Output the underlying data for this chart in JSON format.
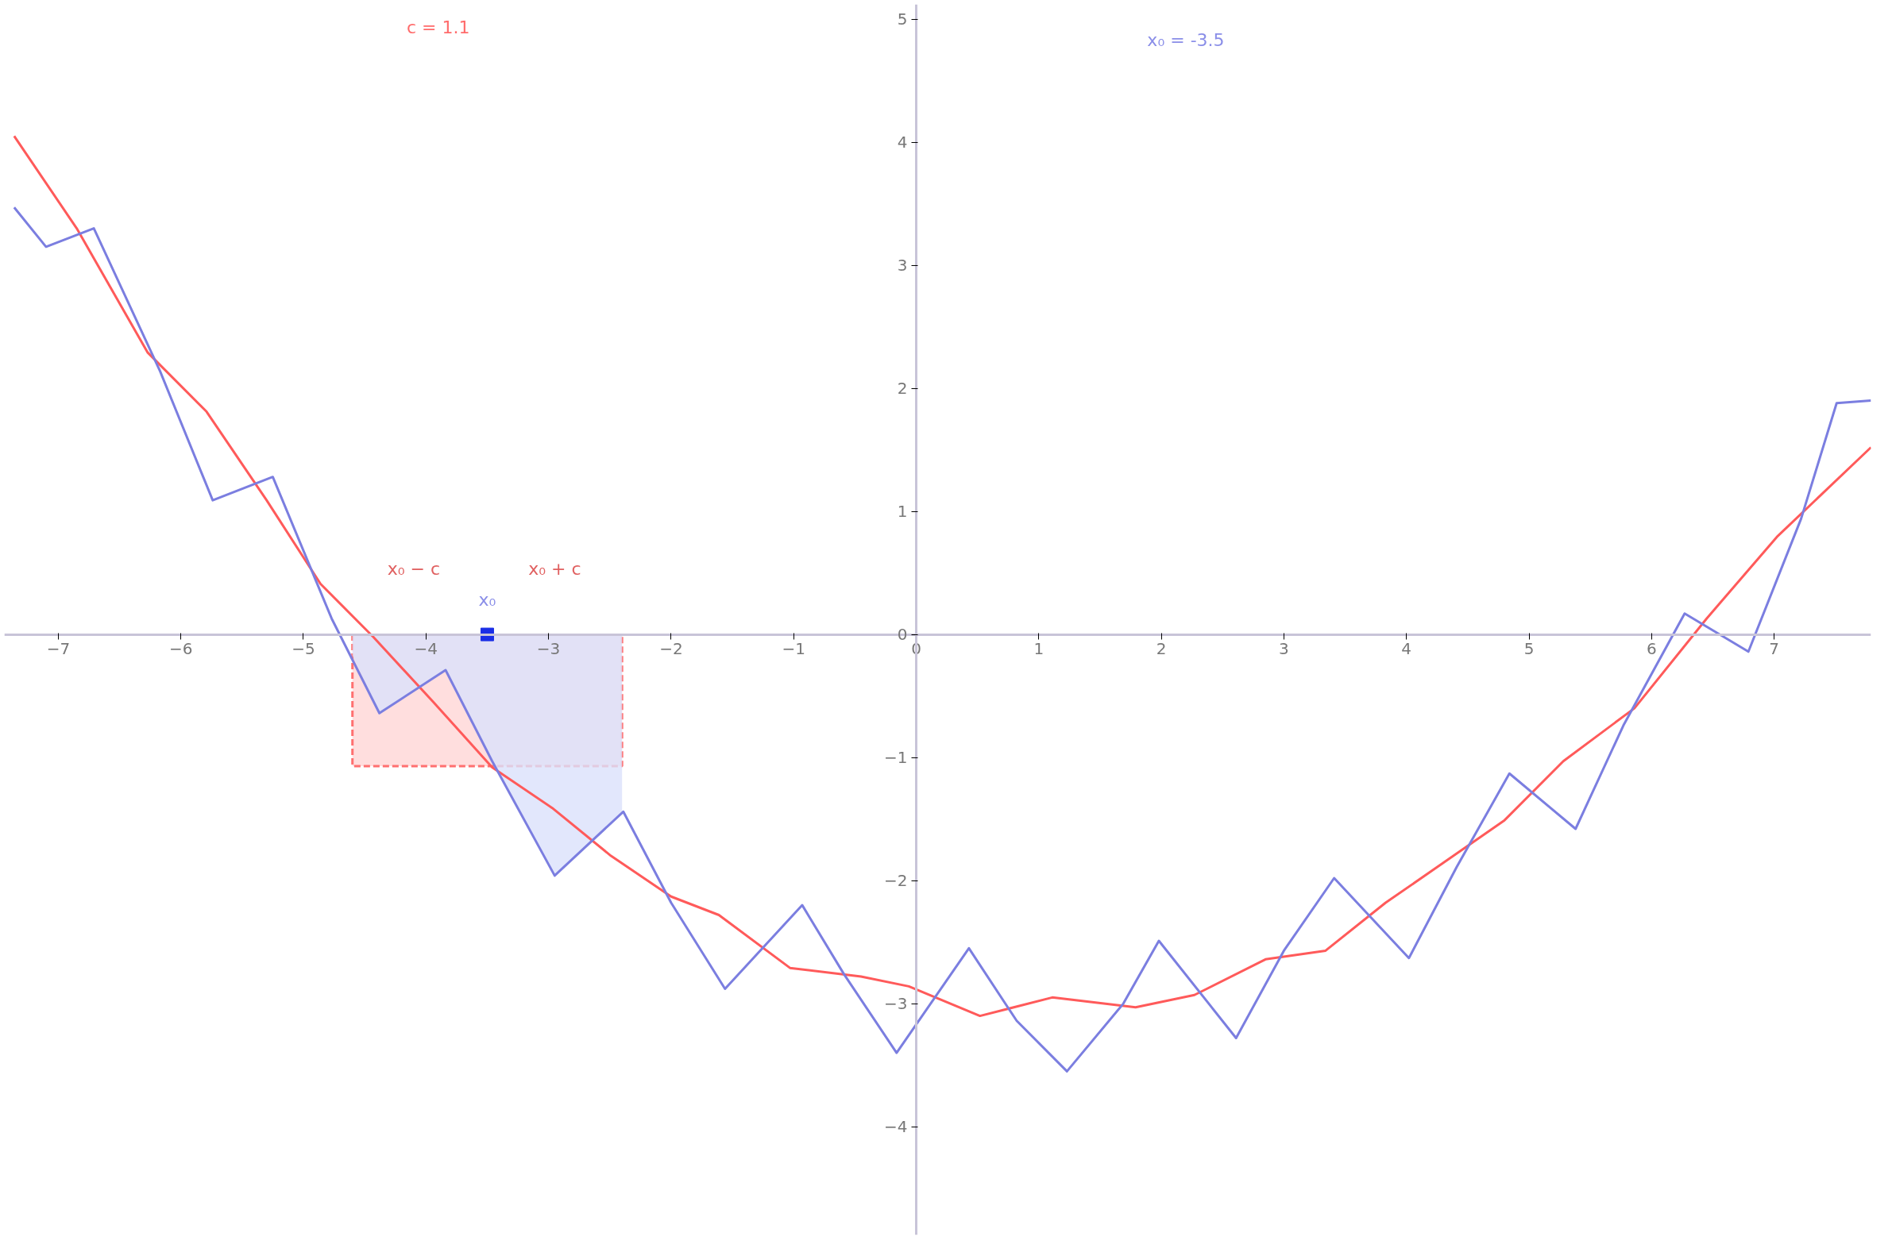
{
  "chart_data": {
    "type": "line",
    "xlim": [
      -7.44,
      7.79
    ],
    "ylim": [
      -4.88,
      5.12
    ],
    "xticks": [
      -7,
      -6,
      -5,
      -4,
      -3,
      -2,
      -1,
      0,
      1,
      2,
      3,
      4,
      5,
      6,
      7
    ],
    "yticks": [
      -4,
      -3,
      -2,
      -1,
      0,
      1,
      2,
      3,
      4,
      5
    ],
    "grid": false,
    "marker": "none",
    "line_style": "solid",
    "series": [
      {
        "type": "area",
        "color": "#ffd6d6",
        "line_style": "dashed",
        "x": [
          -4.6,
          -2.4
        ],
        "values": [
          -1.07,
          -1.07
        ]
      },
      {
        "type": "area",
        "color": "#dbe1fb",
        "x": [
          -4.6,
          -4.38,
          -3.84,
          -3.46,
          -2.95,
          -2.4
        ],
        "values": [
          -0.17,
          -0.64,
          -0.29,
          -1.03,
          -1.96,
          -1.44
        ]
      },
      {
        "color": "#ff5a5a",
        "x": [
          -7.36,
          -6.85,
          -6.27,
          -5.79,
          -5.3,
          -4.86,
          -4.43,
          -3.94,
          -3.46,
          -2.97,
          -2.49,
          -2.0,
          -1.61,
          -1.03,
          -0.45,
          -0.06,
          0.52,
          1.11,
          1.79,
          2.27,
          2.85,
          3.34,
          3.83,
          4.31,
          4.8,
          5.28,
          5.86,
          6.45,
          7.03,
          7.79
        ],
        "values": [
          4.05,
          3.3,
          2.29,
          1.81,
          1.09,
          0.41,
          -0.02,
          -0.55,
          -1.08,
          -1.41,
          -1.8,
          -2.13,
          -2.28,
          -2.71,
          -2.78,
          -2.86,
          -3.1,
          -2.95,
          -3.03,
          -2.93,
          -2.64,
          -2.57,
          -2.18,
          -1.85,
          -1.51,
          -1.03,
          -0.6,
          0.13,
          0.8,
          1.52
        ]
      },
      {
        "color": "#7b7ee0",
        "x": [
          -7.36,
          -7.1,
          -6.71,
          -6.17,
          -5.74,
          -5.25,
          -4.77,
          -4.38,
          -3.84,
          -3.46,
          -2.95,
          -2.39,
          -2.0,
          -1.56,
          -0.93,
          -0.59,
          -0.16,
          0.43,
          0.82,
          1.23,
          1.69,
          1.98,
          2.61,
          3.0,
          3.41,
          4.02,
          4.41,
          4.84,
          5.38,
          5.77,
          6.27,
          6.79,
          7.22,
          7.51,
          7.79
        ],
        "values": [
          3.47,
          3.15,
          3.3,
          2.14,
          1.09,
          1.28,
          0.13,
          -0.64,
          -0.29,
          -1.03,
          -1.96,
          -1.44,
          -2.18,
          -2.88,
          -2.2,
          -2.76,
          -3.4,
          -2.55,
          -3.14,
          -3.55,
          -3.0,
          -2.49,
          -3.28,
          -2.57,
          -1.98,
          -2.63,
          -1.89,
          -1.13,
          -1.58,
          -0.74,
          0.17,
          -0.14,
          0.94,
          1.88,
          1.9
        ]
      },
      {
        "type": "scatter",
        "color": "#1a2ee6",
        "marker": "square",
        "x": [
          -3.5
        ],
        "values": [
          0
        ]
      }
    ],
    "annotations": [
      "x₀ − c",
      "x₀ + c",
      "x₀",
      "c = 1.1",
      "x₀ = -3.5"
    ]
  }
}
